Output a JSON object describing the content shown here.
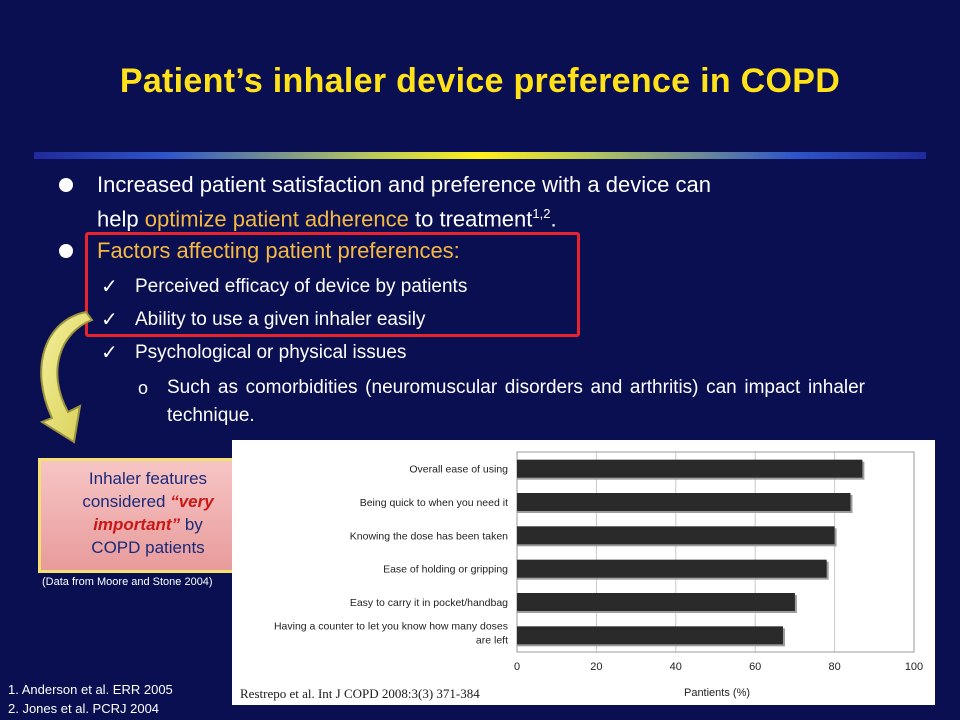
{
  "title": "Patient’s inhaler device preference in COPD",
  "bullets": {
    "first": {
      "line1": "Increased patient satisfaction and preference with a device can",
      "line2_pre": "help ",
      "line2_highlight": "optimize patient adherence",
      "line2_post": " to treatment",
      "superscript": "1,2",
      "end": "."
    },
    "second": "Factors affecting patient preferences:",
    "checks": [
      "Perceived efficacy of device by patients",
      "Ability to use a given inhaler easily",
      "Psychological or physical issues"
    ],
    "subsub": "Such as comorbidities (neuromuscular disorders and arthritis) can impact inhaler technique.",
    "subsub_marker": "o",
    "check_glyph": "✓"
  },
  "callout": {
    "line1": "Inhaler features",
    "line2_pre": "considered ",
    "line2_emph": "“very",
    "line3_emph": "important”",
    "line3_post": " by",
    "line4": "COPD patients"
  },
  "data_source": "(Data from Moore and Stone 2004)",
  "references": [
    "1.   Anderson et al. ERR 2005",
    "2.   Jones et al. PCRJ 2004"
  ],
  "citation": "Restrepo et al. Int J COPD 2008:3(3) 371-384",
  "colors": {
    "background": "#0a0f52",
    "title": "#ffe21a",
    "highlight": "#f5b841",
    "red_box": "#e8232b",
    "bar": "#2a2a2a"
  },
  "chart_data": {
    "type": "bar",
    "orientation": "horizontal",
    "categories": [
      "Overall ease of using",
      "Being quick to when you need it",
      "Knowing the dose has been taken",
      "Ease of holding or gripping",
      "Easy to carry it in pocket/handbag",
      "Having a counter to let you know how many doses|are left"
    ],
    "values": [
      87,
      84,
      80,
      78,
      70,
      67
    ],
    "xlabel": "Pantients (%)",
    "xlim": [
      0,
      100
    ],
    "xticks": [
      0,
      20,
      40,
      60,
      80,
      100
    ],
    "grid": true
  }
}
